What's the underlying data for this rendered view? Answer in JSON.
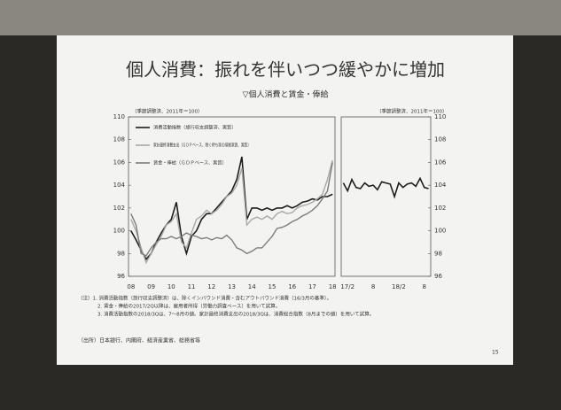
{
  "title": "個人消費：振れを伴いつつ緩やかに増加",
  "subtitle": "▽個人消費と賃金・俸給",
  "notes": [
    "（注）1. 消費活動指数（旅行収支調整済）は、除くインバウンド消費・含むアウトバウンド消費（16/3月の基準）。",
    "2. 賃金・俸給の2017/2Q以降は、雇用者所得（労働力調査ベース）を用いて試算。",
    "3. 消費活動指数の2018/3Qは、7～8月の値。家計最終消費支出の2018/3Qは、消費総合指数（8月までの値）を用いて試算。"
  ],
  "source": "（出所）日本銀行、内閣府、経済産業省、総務省等",
  "page": "15",
  "chart_data": [
    {
      "type": "line",
      "unit_label": "（季節調整済、2011年＝100）",
      "categories": [
        "08",
        null,
        null,
        null,
        "09",
        null,
        null,
        null,
        "10",
        null,
        null,
        null,
        "11",
        null,
        null,
        null,
        "12",
        null,
        null,
        null,
        "13",
        null,
        null,
        null,
        "14",
        null,
        null,
        null,
        "15",
        null,
        null,
        null,
        "16",
        null,
        null,
        null,
        "17",
        null,
        null,
        null,
        "18"
      ],
      "series": [
        {
          "name": "消費活動指数（旅行収支調整済、実質）",
          "color": "#1e1e1e",
          "values": [
            100,
            99.2,
            98.3,
            97.5,
            98,
            99,
            99.8,
            100.5,
            101,
            102.5,
            99.5,
            98,
            99.5,
            100,
            101,
            101.5,
            101.5,
            102,
            102.5,
            103,
            103.5,
            104.5,
            106.5,
            101,
            102,
            102,
            101.8,
            102,
            101.8,
            102,
            102,
            102.2,
            102,
            102.2,
            102.5,
            102.6,
            102.8,
            102.7,
            103,
            103,
            103.2
          ]
        },
        {
          "name": "家計最終消費支出（ＧＤＰベース、除く持ち家の帰属家賃、実質）",
          "color": "#a8a8a8",
          "values": [
            101,
            100,
            98.5,
            97.2,
            98,
            98.8,
            99.5,
            100.5,
            100.8,
            101.5,
            99,
            98.5,
            99.8,
            101,
            101.3,
            101.8,
            101.5,
            101.8,
            102.3,
            103,
            103.3,
            104,
            105.5,
            100.5,
            101,
            101.2,
            101,
            101.3,
            101,
            101.5,
            101.7,
            101.5,
            101.6,
            102,
            102.2,
            102.3,
            102.5,
            102.8,
            103.2,
            104.5,
            106.2
          ]
        },
        {
          "name": "賃金・俸給（ＧＤＰベース、実質）",
          "color": "#7d7d7d",
          "values": [
            101.5,
            100.5,
            98,
            97.8,
            98.5,
            99,
            99.3,
            99.3,
            99.5,
            99.3,
            99.5,
            99.8,
            99.6,
            99.5,
            99.3,
            99.4,
            99.2,
            99.4,
            99.3,
            99.6,
            99.2,
            98.5,
            98.3,
            98,
            98.2,
            98.5,
            98.5,
            99,
            99.5,
            100.2,
            100.3,
            100.5,
            100.8,
            101,
            101.3,
            101.5,
            101.8,
            102.2,
            102.8,
            103.5,
            106
          ]
        }
      ],
      "ylim": [
        96,
        110
      ],
      "yticks": [
        96,
        98,
        100,
        102,
        104,
        106,
        108,
        110
      ]
    },
    {
      "type": "line",
      "unit_label": "（季節調整済、2011年＝100）",
      "categories": [
        null,
        "17/2",
        null,
        null,
        null,
        null,
        null,
        "8",
        null,
        null,
        null,
        null,
        null,
        "18/2",
        null,
        null,
        null,
        null,
        null,
        "8",
        null
      ],
      "series": [
        {
          "color": "#1e1e1e",
          "values": [
            104.2,
            103.5,
            104.5,
            103.8,
            103.7,
            104.2,
            103.9,
            104,
            103.6,
            104.3,
            104.2,
            104.1,
            103,
            104.2,
            103.8,
            104.1,
            104.2,
            103.9,
            104.6,
            103.8,
            103.7
          ]
        }
      ],
      "ylim": [
        96,
        110
      ],
      "yticks": [
        96,
        98,
        100,
        102,
        104,
        106,
        108,
        110
      ]
    }
  ]
}
